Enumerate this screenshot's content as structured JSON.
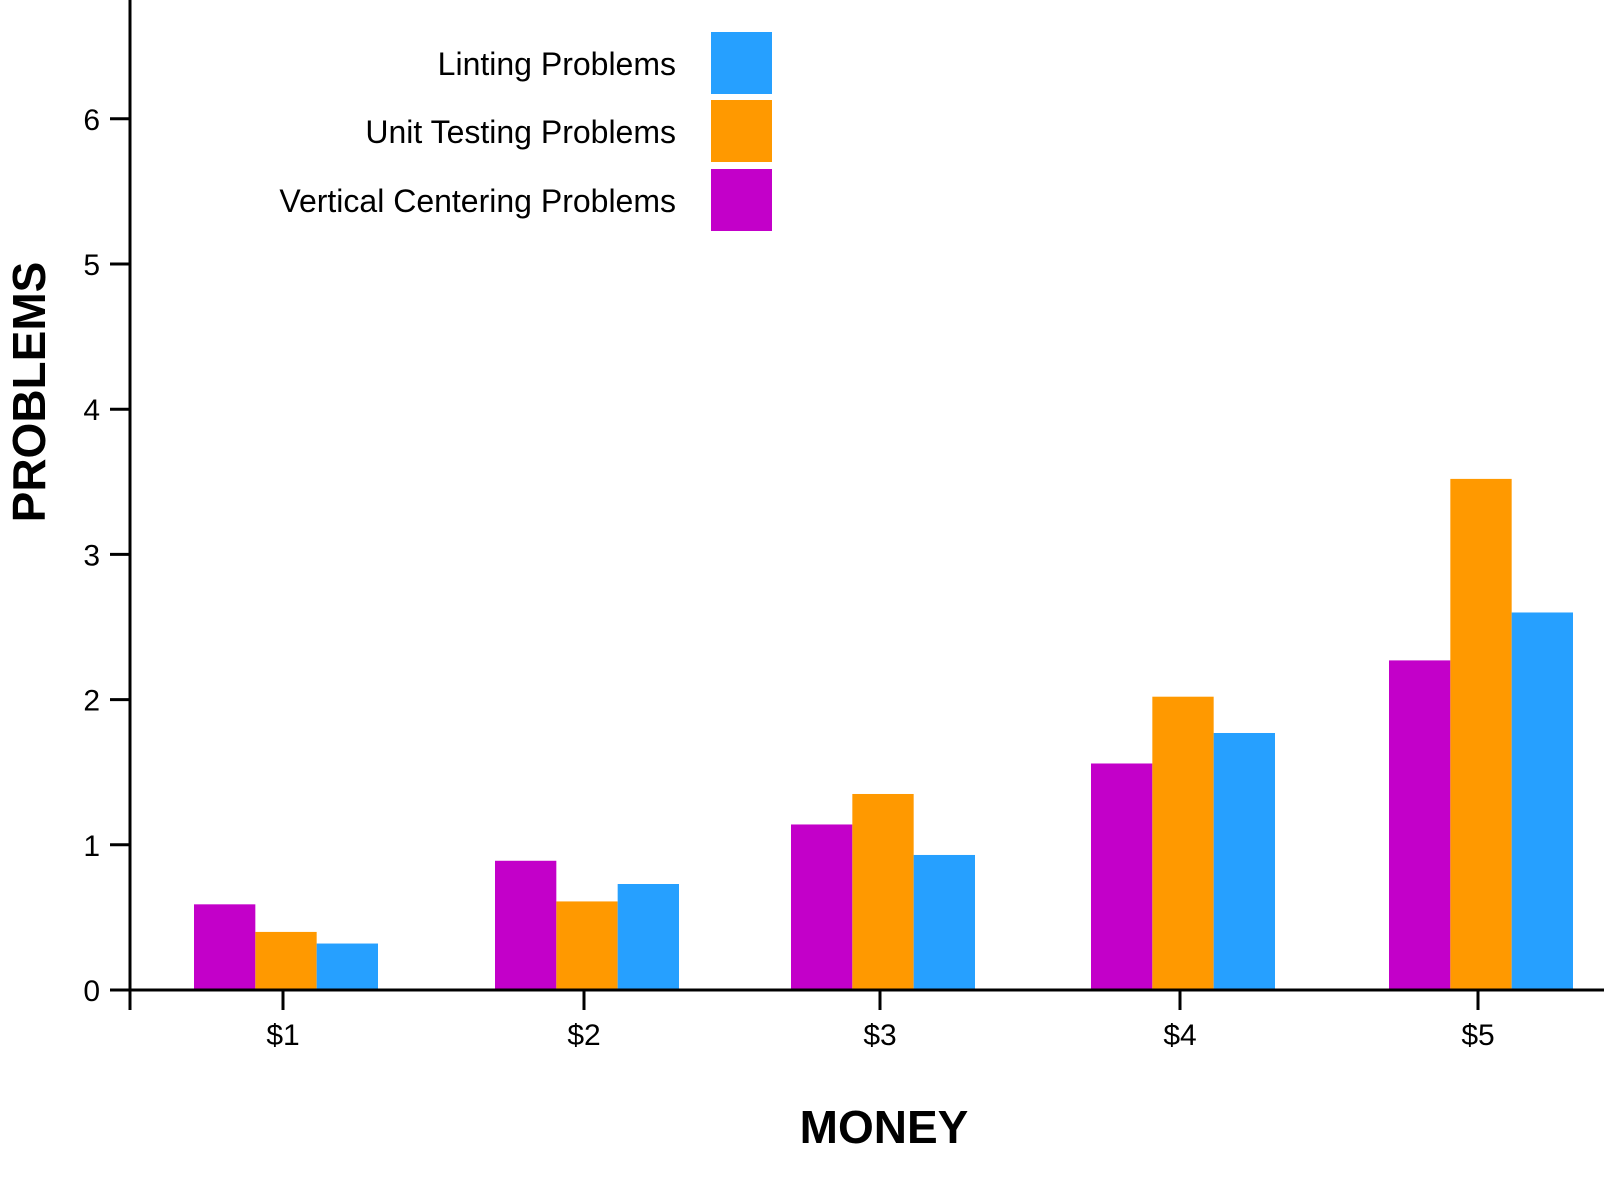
{
  "chart_data": {
    "type": "bar",
    "xlabel": "MONEY",
    "ylabel": "PROBLEMS",
    "categories": [
      "$1",
      "$2",
      "$3",
      "$4",
      "$5"
    ],
    "yticks": [
      "0",
      "1",
      "2",
      "3",
      "4",
      "5",
      "6"
    ],
    "ylim": [
      0,
      6.8
    ],
    "grid": false,
    "legend_position": "top-left",
    "series": [
      {
        "name": "Vertical Centering Problems",
        "color": "#c300c9",
        "values": [
          0.59,
          0.89,
          1.14,
          1.56,
          2.27
        ]
      },
      {
        "name": "Unit Testing Problems",
        "color": "#ff9900",
        "values": [
          0.4,
          0.61,
          1.35,
          2.02,
          3.52
        ]
      },
      {
        "name": "Linting Problems",
        "color": "#26a0ff",
        "values": [
          0.32,
          0.73,
          0.93,
          1.77,
          2.6
        ]
      }
    ],
    "legend_order": [
      2,
      1,
      0
    ]
  }
}
